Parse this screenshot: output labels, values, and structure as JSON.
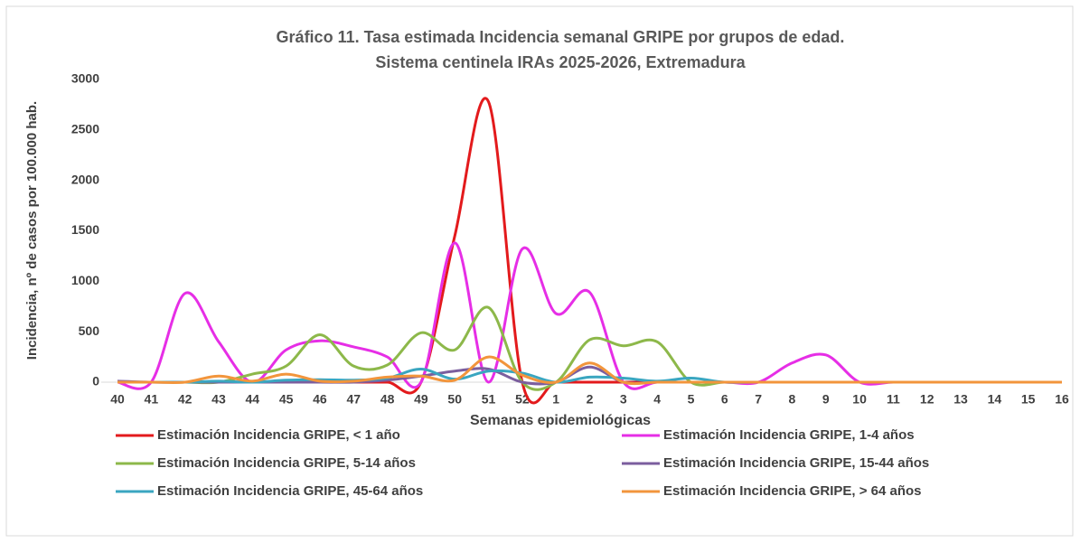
{
  "chart_data": {
    "type": "line",
    "title": "Gráfico 11. Tasa estimada Incidencia semanal GRIPE por grupos de edad.",
    "subtitle": "Sistema centinela IRAs 2025-2026, Extremadura",
    "x_label": "Semanas epidemiológicas",
    "y_label": "Incidencia, nº de casos por 100.000 hab.",
    "categories": [
      "40",
      "41",
      "42",
      "43",
      "44",
      "45",
      "46",
      "47",
      "48",
      "49",
      "50",
      "51",
      "52",
      "1",
      "2",
      "3",
      "4",
      "5",
      "6",
      "7",
      "8",
      "9",
      "10",
      "11",
      "12",
      "13",
      "14",
      "15",
      "16"
    ],
    "ylim": [
      0,
      3000
    ],
    "yticks": [
      0,
      500,
      1000,
      1500,
      2000,
      2500,
      3000
    ],
    "smooth": true,
    "series": [
      {
        "name": "Estimación Incidencia GRIPE, < 1 año",
        "color": "#e31a1c",
        "values": [
          0,
          0,
          0,
          0,
          0,
          0,
          0,
          0,
          0,
          0,
          1450,
          2780,
          0,
          0,
          0,
          0,
          0,
          0,
          0,
          0,
          0,
          0,
          0,
          0,
          0,
          0,
          0,
          0,
          0
        ]
      },
      {
        "name": "Estimación Incidencia GRIPE, 1-4 años",
        "color": "#e62ee6",
        "values": [
          0,
          0,
          880,
          400,
          0,
          320,
          410,
          350,
          250,
          0,
          1380,
          0,
          1320,
          680,
          890,
          0,
          0,
          0,
          0,
          0,
          190,
          270,
          0,
          0,
          0,
          0,
          0,
          0,
          0
        ]
      },
      {
        "name": "Estimación Incidencia GRIPE, 5-14 años",
        "color": "#8db84a",
        "values": [
          0,
          0,
          0,
          0,
          80,
          160,
          470,
          160,
          170,
          490,
          320,
          740,
          0,
          0,
          420,
          360,
          400,
          0,
          0,
          0,
          0,
          0,
          0,
          0,
          0,
          0,
          0,
          0,
          0
        ]
      },
      {
        "name": "Estimación Incidencia GRIPE, 15-44 años",
        "color": "#7b5e9e",
        "values": [
          10,
          0,
          0,
          0,
          0,
          0,
          0,
          0,
          20,
          60,
          110,
          130,
          0,
          0,
          150,
          0,
          0,
          0,
          0,
          0,
          0,
          0,
          0,
          0,
          0,
          0,
          0,
          0,
          0
        ]
      },
      {
        "name": "Estimación Incidencia GRIPE, 45-64 años",
        "color": "#3aa6c0",
        "values": [
          0,
          0,
          0,
          10,
          0,
          20,
          25,
          20,
          40,
          130,
          30,
          110,
          90,
          0,
          50,
          40,
          10,
          40,
          0,
          0,
          0,
          0,
          0,
          0,
          0,
          0,
          0,
          0,
          0
        ]
      },
      {
        "name": "Estimación Incidencia GRIPE, > 64 años",
        "color": "#f2953c",
        "values": [
          0,
          0,
          0,
          60,
          10,
          80,
          10,
          10,
          50,
          60,
          20,
          250,
          70,
          0,
          190,
          0,
          0,
          0,
          0,
          0,
          0,
          0,
          0,
          0,
          0,
          0,
          0,
          0,
          0
        ]
      }
    ]
  }
}
